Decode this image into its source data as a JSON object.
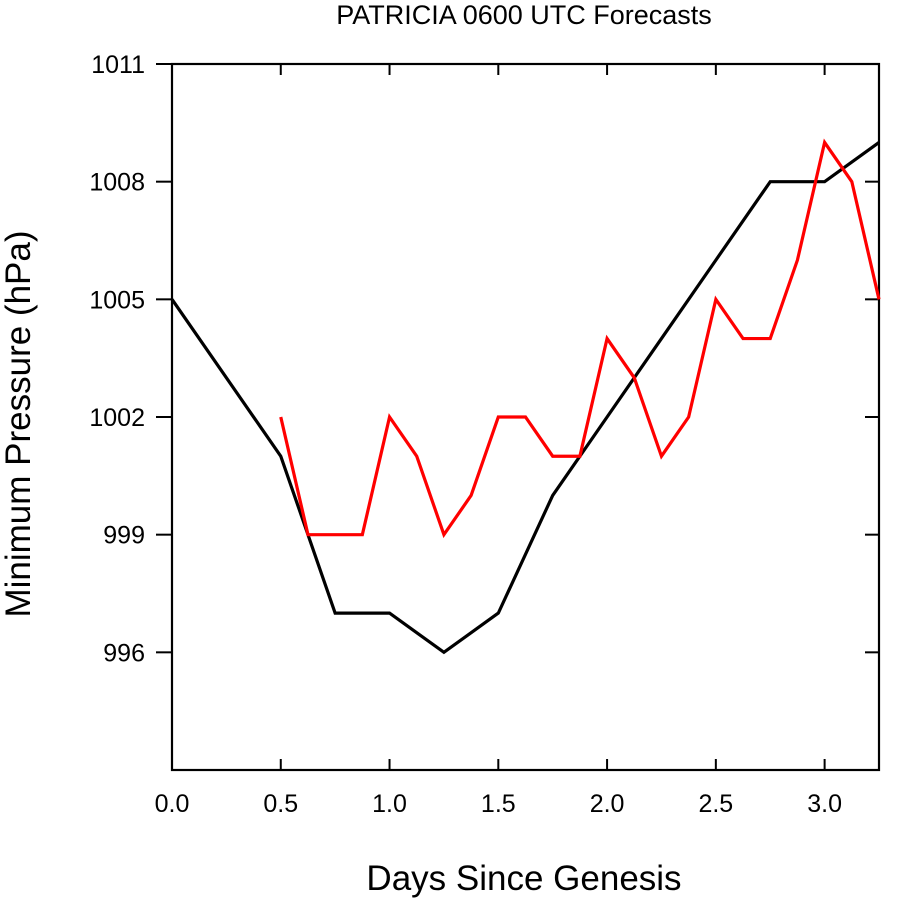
{
  "chart_data": {
    "type": "line",
    "title": "PATRICIA 0600 UTC Forecasts",
    "xlabel": "Days Since Genesis",
    "ylabel": "Minimum Pressure (hPa)",
    "xlim": [
      0,
      3.25
    ],
    "ylim": [
      993,
      1011
    ],
    "x_ticks": [
      0.0,
      0.5,
      1.0,
      1.5,
      2.0,
      2.5,
      3.0
    ],
    "x_tick_labels": [
      "0.0",
      "0.5",
      "1.0",
      "1.5",
      "2.0",
      "2.5",
      "3.0"
    ],
    "y_ticks": [
      996,
      999,
      1002,
      1005,
      1008,
      1011
    ],
    "y_tick_labels": [
      "996",
      "999",
      "1002",
      "1005",
      "1008",
      "1011"
    ],
    "grid": false,
    "series": [
      {
        "color": "#000000",
        "x": [
          0.0,
          0.5,
          0.75,
          1.0,
          1.25,
          1.5,
          1.75,
          2.0,
          2.25,
          2.5,
          2.75,
          3.0,
          3.25
        ],
        "y": [
          1005,
          1001,
          997,
          997,
          996,
          997,
          1000,
          1002,
          1004,
          1006,
          1008,
          1008,
          1009
        ]
      },
      {
        "color": "#ff0000",
        "x": [
          0.5,
          0.625,
          0.75,
          0.875,
          1.0,
          1.125,
          1.25,
          1.375,
          1.5,
          1.625,
          1.75,
          1.875,
          2.0,
          2.125,
          2.25,
          2.375,
          2.5,
          2.625,
          2.75,
          2.875,
          3.0,
          3.125,
          3.25
        ],
        "y": [
          1002,
          999,
          999,
          999,
          1002,
          1001,
          999,
          1000,
          1002,
          1002,
          1001,
          1001,
          1004,
          1003,
          1001,
          1002,
          1005,
          1004,
          1004,
          1006,
          1009,
          1008,
          1005
        ]
      }
    ]
  }
}
